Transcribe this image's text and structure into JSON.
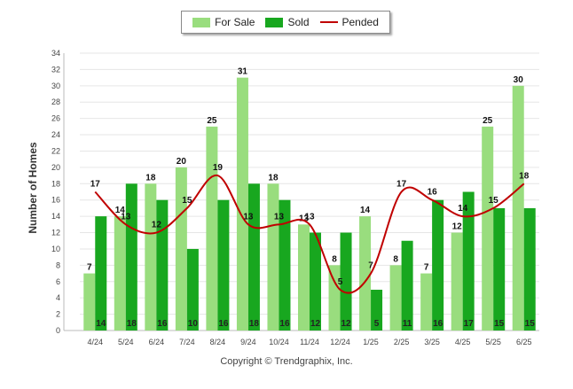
{
  "chart_data": {
    "type": "bar",
    "categories": [
      "4/24",
      "5/24",
      "6/24",
      "7/24",
      "8/24",
      "9/24",
      "10/24",
      "11/24",
      "12/24",
      "1/25",
      "2/25",
      "3/25",
      "4/25",
      "5/25",
      "6/25"
    ],
    "series": [
      {
        "name": "For Sale",
        "type": "bar",
        "color": "#99dd7e",
        "values": [
          7,
          14,
          18,
          20,
          25,
          31,
          18,
          13,
          8,
          14,
          8,
          7,
          12,
          25,
          30
        ]
      },
      {
        "name": "Sold",
        "type": "bar",
        "color": "#18a71f",
        "values": [
          14,
          18,
          16,
          10,
          16,
          18,
          16,
          12,
          12,
          5,
          11,
          16,
          17,
          15,
          15
        ]
      },
      {
        "name": "Pended",
        "type": "line",
        "color": "#c00000",
        "values": [
          17,
          13,
          12,
          15,
          19,
          13,
          13,
          13,
          5,
          7,
          17,
          16,
          14,
          15,
          18
        ]
      }
    ],
    "ylabel": "Number of Homes",
    "ylim": [
      0,
      34
    ],
    "yticks": [
      0,
      2,
      4,
      6,
      8,
      10,
      12,
      14,
      16,
      18,
      20,
      22,
      24,
      26,
      28,
      30,
      32,
      34
    ],
    "grid": true,
    "legend_position": "top-center"
  },
  "copyright": "Copyright © Trendgraphix, Inc."
}
